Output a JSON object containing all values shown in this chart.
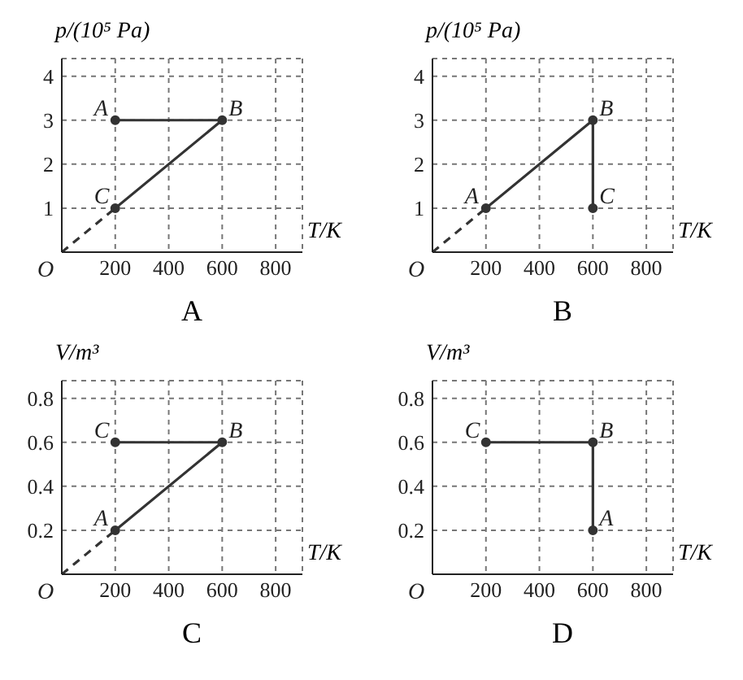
{
  "chart_data": [
    {
      "type": "line",
      "title": "A",
      "xlabel": "T/K",
      "ylabel": "p/(10⁵ Pa)",
      "xlim": [
        0,
        900
      ],
      "ylim": [
        0,
        4.4
      ],
      "xticks": [
        200,
        400,
        600,
        800
      ],
      "yticks": [
        1,
        2,
        3,
        4
      ],
      "grid": true,
      "series": [
        {
          "color": "#333333",
          "x": [
            200,
            600,
            200
          ],
          "values": [
            3,
            3,
            1
          ],
          "value_labels": [
            "A",
            "B",
            "C"
          ],
          "marker": "circle",
          "line_style": "solid"
        },
        {
          "color": "#333333",
          "x": [
            0,
            200
          ],
          "values": [
            0,
            1
          ],
          "marker": "none",
          "line_style": "dashed"
        }
      ],
      "annotations": [
        "O"
      ]
    },
    {
      "type": "line",
      "title": "B",
      "xlabel": "T/K",
      "ylabel": "p/(10⁵ Pa)",
      "xlim": [
        0,
        900
      ],
      "ylim": [
        0,
        4.4
      ],
      "xticks": [
        200,
        400,
        600,
        800
      ],
      "yticks": [
        1,
        2,
        3,
        4
      ],
      "grid": true,
      "series": [
        {
          "color": "#333333",
          "x": [
            200,
            600,
            600
          ],
          "values": [
            1,
            3,
            1
          ],
          "value_labels": [
            "A",
            "B",
            "C"
          ],
          "marker": "circle",
          "line_style": "solid"
        },
        {
          "color": "#333333",
          "x": [
            0,
            200
          ],
          "values": [
            0,
            1
          ],
          "marker": "none",
          "line_style": "dashed"
        }
      ],
      "annotations": [
        "O"
      ]
    },
    {
      "type": "line",
      "title": "C",
      "xlabel": "T/K",
      "ylabel": "V/m³",
      "xlim": [
        0,
        900
      ],
      "ylim": [
        0,
        0.88
      ],
      "xticks": [
        200,
        400,
        600,
        800
      ],
      "yticks": [
        0.2,
        0.4,
        0.6,
        0.8
      ],
      "grid": true,
      "series": [
        {
          "color": "#333333",
          "x": [
            200,
            600,
            200
          ],
          "values": [
            0.6,
            0.6,
            0.2
          ],
          "value_labels": [
            "C",
            "B",
            "A"
          ],
          "marker": "circle",
          "line_style": "solid"
        },
        {
          "color": "#333333",
          "x": [
            0,
            200
          ],
          "values": [
            0,
            0.2
          ],
          "marker": "none",
          "line_style": "dashed"
        }
      ],
      "annotations": [
        "O"
      ]
    },
    {
      "type": "line",
      "title": "D",
      "xlabel": "T/K",
      "ylabel": "V/m³",
      "xlim": [
        0,
        900
      ],
      "ylim": [
        0,
        0.88
      ],
      "xticks": [
        200,
        400,
        600,
        800
      ],
      "yticks": [
        0.2,
        0.4,
        0.6,
        0.8
      ],
      "grid": true,
      "series": [
        {
          "color": "#333333",
          "x": [
            200,
            600,
            600
          ],
          "values": [
            0.6,
            0.6,
            0.2
          ],
          "value_labels": [
            "C",
            "B",
            "A"
          ],
          "marker": "circle",
          "line_style": "solid"
        }
      ],
      "annotations": [
        "O"
      ]
    }
  ]
}
